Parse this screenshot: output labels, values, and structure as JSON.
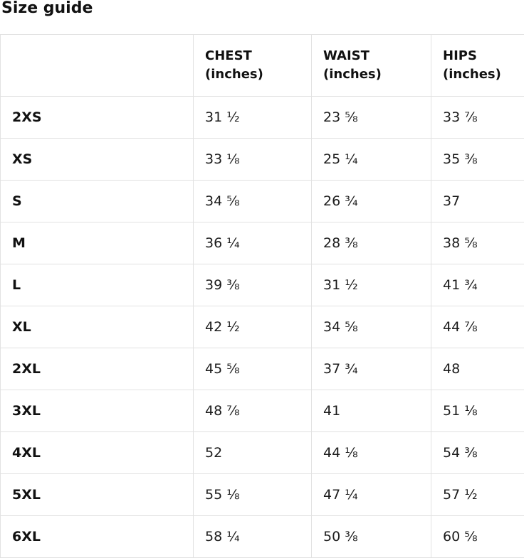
{
  "page": {
    "title": "Size guide"
  },
  "size_guide": {
    "columns": [
      {
        "label": "",
        "unit": ""
      },
      {
        "label": "CHEST",
        "unit": "(inches)"
      },
      {
        "label": "WAIST",
        "unit": "(inches)"
      },
      {
        "label": "HIPS",
        "unit": "(inches)"
      }
    ],
    "rows": [
      {
        "size": "2XS",
        "chest": "31 ½",
        "waist": "23 ⅝",
        "hips": "33 ⅞"
      },
      {
        "size": "XS",
        "chest": "33 ⅛",
        "waist": "25 ¼",
        "hips": "35 ⅜"
      },
      {
        "size": "S",
        "chest": "34 ⅝",
        "waist": "26 ¾",
        "hips": "37"
      },
      {
        "size": "M",
        "chest": "36 ¼",
        "waist": "28 ⅜",
        "hips": "38 ⅝"
      },
      {
        "size": "L",
        "chest": "39 ⅜",
        "waist": "31 ½",
        "hips": "41 ¾"
      },
      {
        "size": "XL",
        "chest": "42 ½",
        "waist": "34 ⅝",
        "hips": "44 ⅞"
      },
      {
        "size": "2XL",
        "chest": "45 ⅝",
        "waist": "37 ¾",
        "hips": "48"
      },
      {
        "size": "3XL",
        "chest": "48 ⅞",
        "waist": "41",
        "hips": "51 ⅛"
      },
      {
        "size": "4XL",
        "chest": "52",
        "waist": "44 ⅛",
        "hips": "54 ⅜"
      },
      {
        "size": "5XL",
        "chest": "55 ⅛",
        "waist": "47 ¼",
        "hips": "57 ½"
      },
      {
        "size": "6XL",
        "chest": "58 ¼",
        "waist": "50 ⅜",
        "hips": "60 ⅝"
      }
    ],
    "colors": {
      "text": "#1a1a1a",
      "border": "#e2e2e2",
      "background": "#ffffff"
    }
  }
}
